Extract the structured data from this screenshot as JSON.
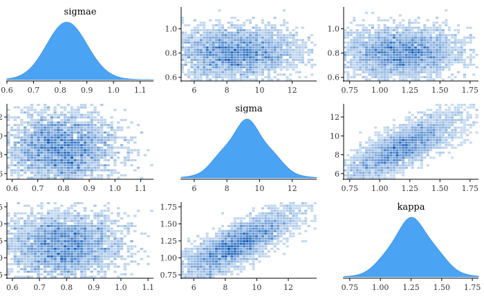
{
  "colors": {
    "density_fill": "#4ba3f4",
    "density_stroke": "#3a92e4",
    "hex_light": "#dbe9f7",
    "hex_dark": "#0a58b8",
    "axis": "#000000"
  },
  "chart_data": [
    {
      "type": "area",
      "panel": "sigmae-density",
      "row": 0,
      "col": 0,
      "title": "sigmae",
      "xlim": [
        0.6,
        1.15
      ],
      "xticks": [
        0.6,
        0.7,
        0.8,
        0.9,
        1.0,
        1.1
      ],
      "xticklabels": [
        "0.6",
        "0.7",
        "0.8",
        "0.9",
        "1.0",
        "1.1"
      ],
      "yticks": [],
      "density": {
        "mean": 0.79,
        "sd": 0.085,
        "skew": 0.6,
        "wobble": 0.0
      }
    },
    {
      "type": "heatmap",
      "panel": "sigma-vs-sigmae",
      "row": 0,
      "col": 1,
      "xlim": [
        5.2,
        13.5
      ],
      "ylim": [
        0.57,
        1.18
      ],
      "xticks": [
        6,
        8,
        10,
        12
      ],
      "xticklabels": [
        "6",
        "8",
        "10",
        "12"
      ],
      "yticks": [
        0.6,
        0.8,
        1.0
      ],
      "yticklabels": [
        "0.6",
        "0.8",
        "1.0"
      ],
      "center": [
        8.5,
        0.8
      ],
      "spread": [
        1.6,
        0.085
      ],
      "corr": 0.0
    },
    {
      "type": "heatmap",
      "panel": "kappa-vs-sigmae",
      "row": 0,
      "col": 2,
      "xlim": [
        0.7,
        1.82
      ],
      "ylim": [
        0.57,
        1.18
      ],
      "xticks": [
        0.75,
        1.0,
        1.25,
        1.5,
        1.75
      ],
      "xticklabels": [
        "0.75",
        "1.00",
        "1.25",
        "1.50",
        "1.75"
      ],
      "yticks": [
        0.6,
        0.8,
        1.0
      ],
      "yticklabels": [
        "0.6",
        "0.8",
        "1.0"
      ],
      "center": [
        1.18,
        0.8
      ],
      "spread": [
        0.2,
        0.085
      ],
      "corr": 0.0
    },
    {
      "type": "heatmap",
      "panel": "sigmae-vs-sigma",
      "row": 1,
      "col": 0,
      "xlim": [
        0.58,
        1.15
      ],
      "ylim": [
        5.4,
        13.4
      ],
      "xticks": [
        0.6,
        0.7,
        0.8,
        0.9,
        1.0,
        1.1
      ],
      "xticklabels": [
        "0.6",
        "0.7",
        "0.8",
        "0.9",
        "1.0",
        "1.1"
      ],
      "yticks": [
        6,
        8,
        10,
        12
      ],
      "yticklabels": [
        "6",
        "8",
        "10",
        "12"
      ],
      "center": [
        0.79,
        8.7
      ],
      "spread": [
        0.085,
        1.5
      ],
      "corr": 0.0
    },
    {
      "type": "area",
      "panel": "sigma-density",
      "row": 1,
      "col": 1,
      "title": "sigma",
      "xlim": [
        5.2,
        13.5
      ],
      "xticks": [
        6,
        8,
        10,
        12
      ],
      "xticklabels": [
        "6",
        "8",
        "10",
        "12"
      ],
      "yticks": [],
      "density": {
        "mean": 8.7,
        "sd": 1.45,
        "skew": 0.5,
        "wobble": 0.07
      }
    },
    {
      "type": "heatmap",
      "panel": "kappa-vs-sigma",
      "row": 1,
      "col": 2,
      "xlim": [
        0.7,
        1.82
      ],
      "ylim": [
        5.4,
        13.4
      ],
      "xticks": [
        0.75,
        1.0,
        1.25,
        1.5,
        1.75
      ],
      "xticklabels": [
        "0.75",
        "1.00",
        "1.25",
        "1.50",
        "1.75"
      ],
      "yticks": [
        6,
        8,
        10,
        12
      ],
      "yticklabels": [
        "6",
        "8",
        "10",
        "12"
      ],
      "center": [
        1.18,
        8.7
      ],
      "spread": [
        0.2,
        1.5
      ],
      "corr": 0.8
    },
    {
      "type": "heatmap",
      "panel": "sigmae-vs-kappa",
      "row": 2,
      "col": 0,
      "xlim": [
        0.58,
        1.12
      ],
      "ylim": [
        0.7,
        1.82
      ],
      "xticks": [
        0.6,
        0.7,
        0.8,
        0.9,
        1.0,
        1.1
      ],
      "xticklabels": [
        "0.6",
        "0.7",
        "0.8",
        "0.9",
        "1.0",
        "1.1"
      ],
      "yticks": [
        0.75,
        1.0,
        1.25,
        1.5,
        1.75
      ],
      "yticklabels": [
        "0.75",
        "1.00",
        "1.25",
        "1.50",
        "1.75"
      ],
      "center": [
        0.79,
        1.18
      ],
      "spread": [
        0.085,
        0.2
      ],
      "corr": 0.0
    },
    {
      "type": "heatmap",
      "panel": "sigma-vs-kappa",
      "row": 2,
      "col": 1,
      "xlim": [
        5.2,
        13.8
      ],
      "ylim": [
        0.7,
        1.82
      ],
      "xticks": [
        6,
        8,
        10,
        12
      ],
      "xticklabels": [
        "6",
        "8",
        "10",
        "12"
      ],
      "yticks": [
        0.75,
        1.0,
        1.25,
        1.5,
        1.75
      ],
      "yticklabels": [
        "0.75",
        "1.00",
        "1.25",
        "1.50",
        "1.75"
      ],
      "center": [
        8.7,
        1.18
      ],
      "spread": [
        1.5,
        0.2
      ],
      "corr": 0.8
    },
    {
      "type": "area",
      "panel": "kappa-density",
      "row": 2,
      "col": 2,
      "title": "kappa",
      "xlim": [
        0.7,
        1.8
      ],
      "xticks": [
        0.75,
        1.0,
        1.25,
        1.5,
        1.75
      ],
      "xticklabels": [
        "0.75",
        "1.00",
        "1.25",
        "1.50",
        "1.75"
      ],
      "yticks": [],
      "density": {
        "mean": 1.17,
        "sd": 0.2,
        "skew": 0.7,
        "wobble": 0.05
      }
    }
  ]
}
